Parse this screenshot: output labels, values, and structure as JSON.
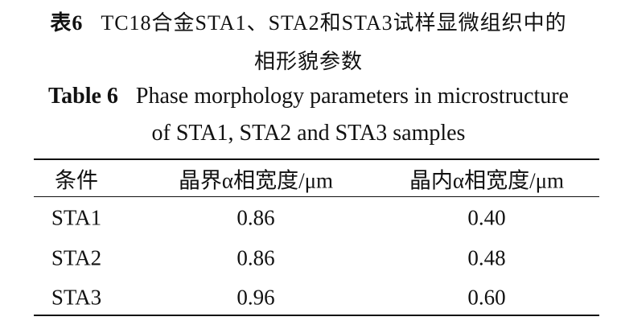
{
  "caption": {
    "label_cn": "表6",
    "title_cn_lines": [
      "TC18合金STA1、STA2和STA3试样显微组织中的",
      "相形貌参数"
    ],
    "label_en": "Table 6",
    "title_en_lines": [
      "Phase morphology parameters in microstructure",
      "of STA1, STA2 and STA3 samples"
    ]
  },
  "table": {
    "header": [
      "条件",
      "晶界α相宽度/μm",
      "晶内α相宽度/μm"
    ],
    "rows": [
      [
        "STA1",
        "0.86",
        "0.40"
      ],
      [
        "STA2",
        "0.86",
        "0.48"
      ],
      [
        "STA3",
        "0.96",
        "0.60"
      ]
    ]
  }
}
